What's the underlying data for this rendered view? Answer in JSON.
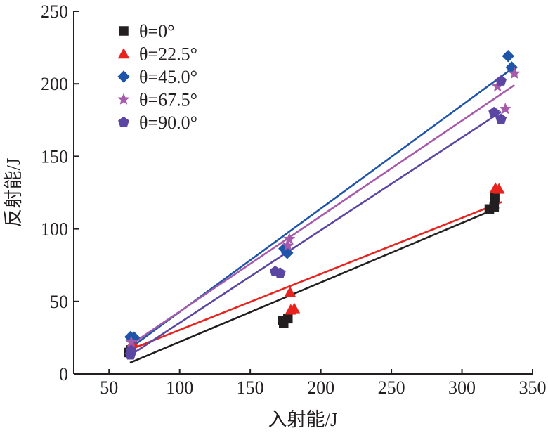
{
  "chart_data": {
    "type": "scatter",
    "xlabel": "入射能/J",
    "ylabel": "反射能/J",
    "xlim": [
      25,
      350
    ],
    "ylim": [
      0,
      250
    ],
    "xticks": [
      "50",
      "100",
      "150",
      "200",
      "250",
      "300",
      "350"
    ],
    "yticks": [
      "0",
      "50",
      "100",
      "150",
      "200",
      "250"
    ],
    "legend_placement": "top-left",
    "grid": false,
    "series": [
      {
        "name": "θ=0°",
        "color": "#231f20",
        "marker": "square",
        "points": [
          [
            63.8,
            14.8
          ],
          [
            65.2,
            16.5
          ],
          [
            173.7,
            34.8
          ],
          [
            173.2,
            36.9
          ],
          [
            176.7,
            38.1
          ],
          [
            319.4,
            113.7
          ],
          [
            322.8,
            115.1
          ],
          [
            323.2,
            121.6
          ]
        ],
        "fit": [
          [
            64.8,
            7.7
          ],
          [
            326.2,
            114.8
          ]
        ]
      },
      {
        "name": "θ=22.5°",
        "color": "#e8231e",
        "marker": "triangle",
        "points": [
          [
            66.7,
            21.9
          ],
          [
            178.2,
            56.3
          ],
          [
            178.7,
            44.2
          ],
          [
            181.2,
            45.1
          ],
          [
            323.7,
            128.0
          ],
          [
            326.2,
            127.5
          ]
        ],
        "fit": [
          [
            65.2,
            16.9
          ],
          [
            328.2,
            118.5
          ]
        ]
      },
      {
        "name": "θ=45.0°",
        "color": "#1f55a8",
        "marker": "diamond",
        "points": [
          [
            65.2,
            25.5
          ],
          [
            67.7,
            25.1
          ],
          [
            174.2,
            86.4
          ],
          [
            176.2,
            83.4
          ],
          [
            332.7,
            219.1
          ],
          [
            335.2,
            211.3
          ]
        ],
        "fit": [
          [
            65.2,
            18.0
          ],
          [
            335.2,
            210.3
          ]
        ]
      },
      {
        "name": "θ=67.5°",
        "color": "#a65aab",
        "marker": "star",
        "points": [
          [
            65.7,
            21.9
          ],
          [
            176.7,
            88.4
          ],
          [
            177.7,
            93.0
          ],
          [
            325.2,
            198.1
          ],
          [
            330.7,
            182.6
          ],
          [
            337.2,
            207.0
          ]
        ],
        "fit": [
          [
            65.2,
            20.1
          ],
          [
            337.2,
            199.1
          ]
        ]
      },
      {
        "name": "θ=90.0°",
        "color": "#5b46a2",
        "marker": "pentagon",
        "points": [
          [
            65.2,
            13.2
          ],
          [
            65.7,
            16.2
          ],
          [
            167.7,
            70.6
          ],
          [
            171.2,
            69.5
          ],
          [
            322.7,
            180.2
          ],
          [
            327.7,
            175.6
          ],
          [
            327.7,
            202.0
          ]
        ],
        "fit": [
          [
            65.2,
            13.0
          ],
          [
            327.7,
            180.7
          ]
        ]
      }
    ]
  }
}
